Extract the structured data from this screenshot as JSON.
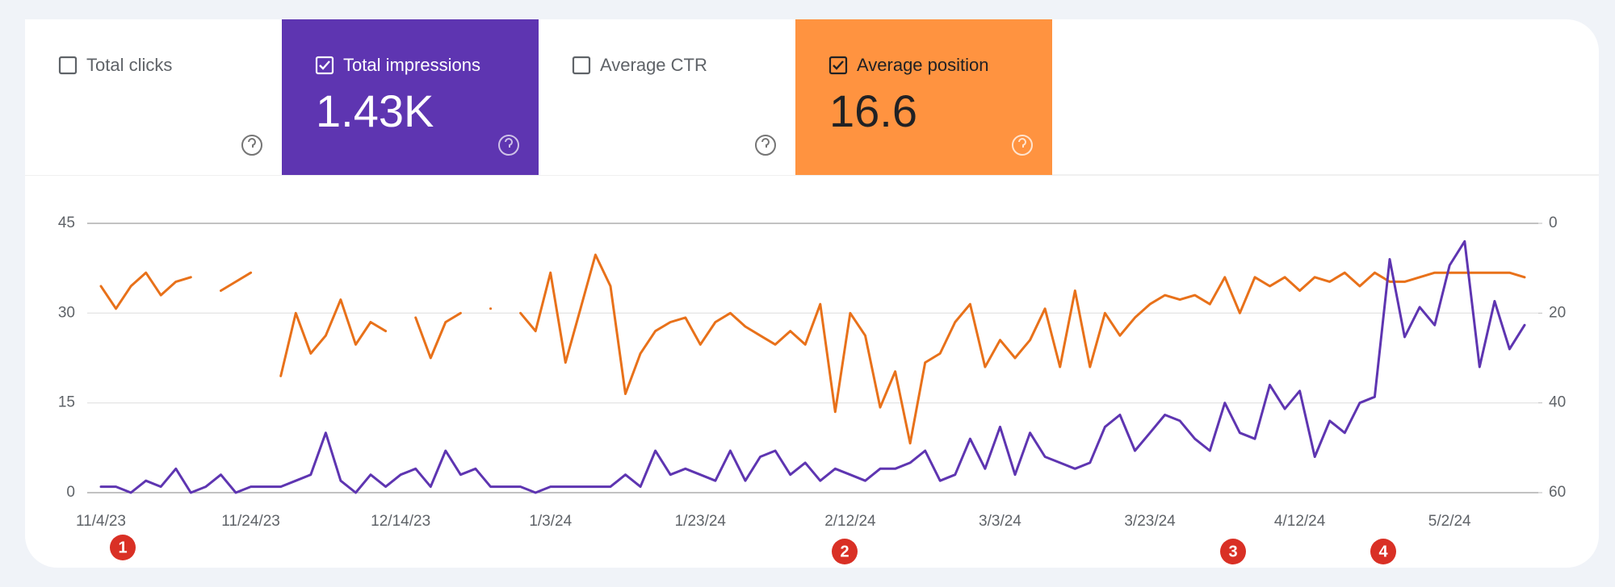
{
  "metrics": [
    {
      "label": "Total clicks",
      "checked": false
    },
    {
      "label": "Total impressions",
      "value": "1.43K",
      "checked": true,
      "color": "#5e35b1"
    },
    {
      "label": "Average CTR",
      "checked": false
    },
    {
      "label": "Average position",
      "value": "16.6",
      "checked": true,
      "color": "#ff9340"
    }
  ],
  "chart_data": {
    "type": "line",
    "categories": [
      "11/4/23",
      null,
      null,
      null,
      null,
      null,
      null,
      null,
      null,
      null,
      "11/24/23",
      null,
      null,
      null,
      null,
      null,
      null,
      null,
      null,
      null,
      "12/14/23",
      null,
      null,
      null,
      null,
      null,
      null,
      null,
      null,
      null,
      "1/3/24",
      null,
      null,
      null,
      null,
      null,
      null,
      null,
      null,
      null,
      "1/23/24",
      null,
      null,
      null,
      null,
      null,
      null,
      null,
      null,
      null,
      "2/12/24",
      null,
      null,
      null,
      null,
      null,
      null,
      null,
      null,
      null,
      "3/3/24",
      null,
      null,
      null,
      null,
      null,
      null,
      null,
      null,
      null,
      "3/23/24",
      null,
      null,
      null,
      null,
      null,
      null,
      null,
      null,
      null,
      "4/12/24",
      null,
      null,
      null,
      null,
      null,
      null,
      null,
      null,
      null,
      "5/2/24",
      null,
      null,
      null,
      null,
      null
    ],
    "series": [
      {
        "name": "Total impressions",
        "color": "#5e35b1",
        "axis": "y",
        "values": [
          1,
          1,
          0,
          2,
          1,
          4,
          0,
          1,
          3,
          0,
          1,
          1,
          1,
          2,
          3,
          10,
          2,
          0,
          3,
          1,
          3,
          4,
          1,
          7,
          3,
          4,
          1,
          1,
          1,
          0,
          1,
          1,
          1,
          1,
          1,
          3,
          1,
          7,
          3,
          4,
          3,
          2,
          7,
          2,
          6,
          7,
          3,
          5,
          2,
          4,
          3,
          2,
          4,
          4,
          5,
          7,
          2,
          3,
          9,
          4,
          11,
          3,
          10,
          6,
          5,
          4,
          5,
          11,
          13,
          7,
          10,
          13,
          12,
          9,
          7,
          15,
          10,
          9,
          18,
          14,
          17,
          6,
          12,
          10,
          15,
          16,
          39,
          26,
          31,
          28,
          38,
          42,
          21,
          32,
          24,
          28
        ]
      },
      {
        "name": "Average position",
        "color": "#e8711a",
        "axis": "y2",
        "values": [
          14,
          19,
          14,
          11,
          16,
          13,
          12,
          null,
          15,
          13,
          11,
          null,
          34,
          20,
          29,
          25,
          17,
          27,
          22,
          24,
          null,
          21,
          30,
          22,
          20,
          null,
          19,
          null,
          20,
          24,
          11,
          31,
          19,
          7,
          14,
          38,
          29,
          24,
          22,
          21,
          27,
          22,
          20,
          23,
          25,
          27,
          24,
          27,
          18,
          42,
          20,
          25,
          41,
          33,
          49,
          31,
          29,
          22,
          18,
          32,
          26,
          30,
          26,
          19,
          32,
          15,
          32,
          20,
          25,
          21,
          18,
          16,
          17,
          16,
          18,
          12,
          20,
          12,
          14,
          12,
          15,
          12,
          13,
          11,
          14,
          11,
          13,
          13,
          12,
          11,
          11,
          11,
          11,
          11,
          11,
          12
        ]
      }
    ],
    "ylim": [
      0,
      45
    ],
    "yticks": [
      0,
      15,
      30,
      45
    ],
    "y2lim": [
      60,
      0
    ],
    "y2ticks": [
      0,
      20,
      40,
      60
    ],
    "grid": true,
    "annotations": [
      "1",
      "2",
      "3",
      "4"
    ]
  }
}
